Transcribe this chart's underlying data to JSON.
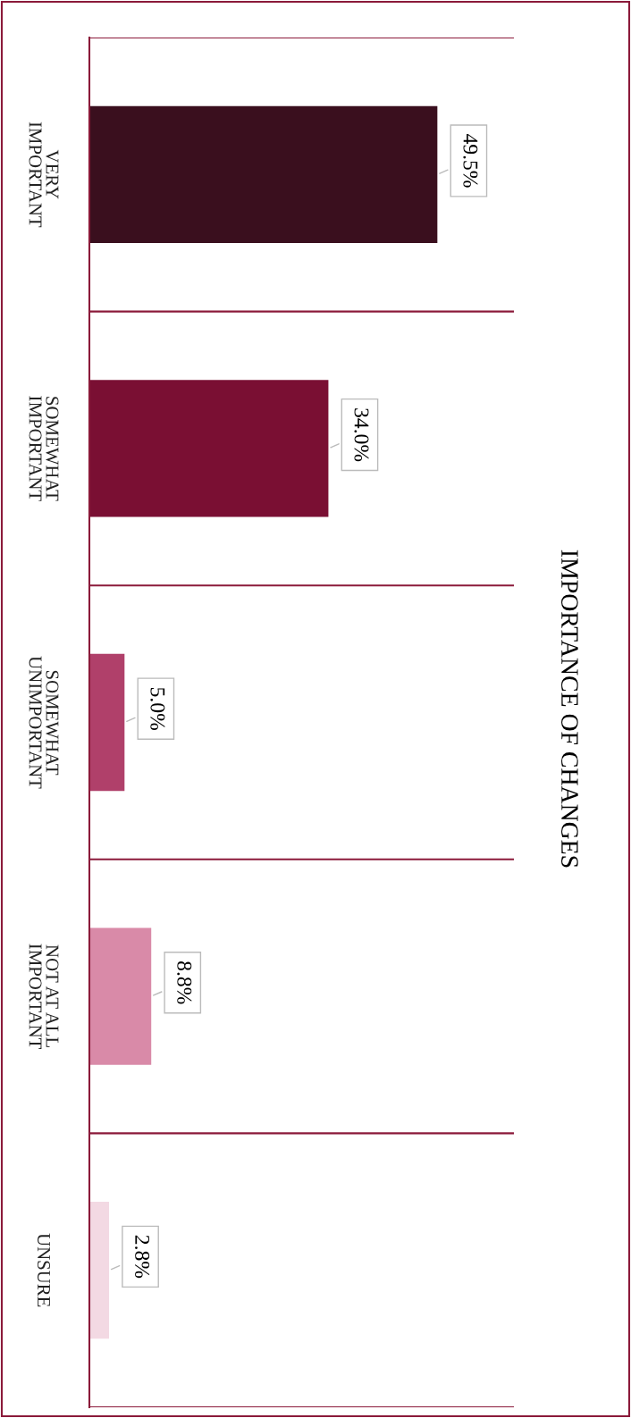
{
  "chart_data": {
    "type": "bar",
    "orientation": "horizontal",
    "title": "IMPORTANCE OF CHANGES",
    "categories": [
      "VERY\nIMPORTANT",
      "SOMEWHAT\nIMPORTANT",
      "SOMEWHAT\nUNIMPORTANT",
      "NOT AT ALL\nIMPORTANT",
      "UNSURE"
    ],
    "values": [
      49.5,
      34.0,
      5.0,
      8.8,
      2.8
    ],
    "value_labels": [
      "49.5%",
      "34.0%",
      "5.0%",
      "8.8%",
      "2.8%"
    ],
    "colors": [
      "#3a0f1e",
      "#7a0f33",
      "#b0406a",
      "#d98aa8",
      "#f3d9e3"
    ],
    "grid": "y"
  }
}
